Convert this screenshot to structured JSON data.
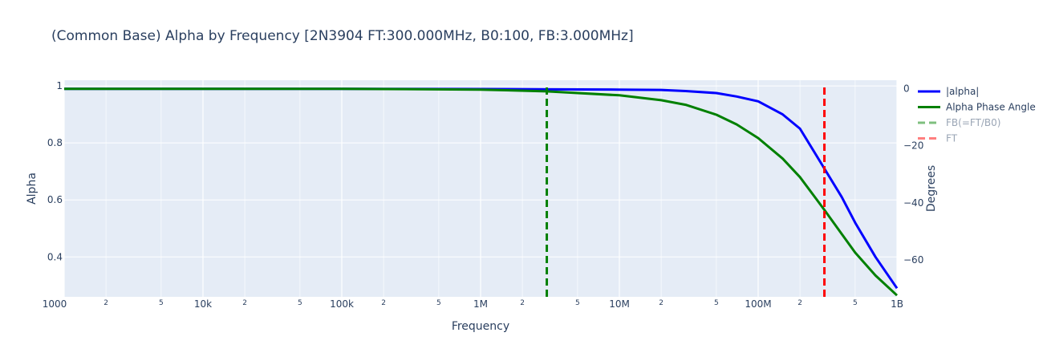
{
  "chart_data": {
    "type": "line",
    "title": "(Common Base) Alpha by Frequency [2N3904 FT:300.000MHz, B0:100, FB:3.000MHz]",
    "xlabel": "Frequency",
    "ylabel": "Alpha",
    "y2label": "Degrees",
    "x_scale": "log",
    "xlim": [
      1000,
      1000000000
    ],
    "ylim": [
      0.26,
      1.02
    ],
    "y2lim": [
      -73.0,
      3.0
    ],
    "x_ticks": [
      {
        "value": 1000,
        "label": "1000",
        "major": true
      },
      {
        "value": 2000,
        "label": "2",
        "major": false
      },
      {
        "value": 5000,
        "label": "5",
        "major": false
      },
      {
        "value": 10000,
        "label": "10k",
        "major": true
      },
      {
        "value": 20000,
        "label": "2",
        "major": false
      },
      {
        "value": 50000,
        "label": "5",
        "major": false
      },
      {
        "value": 100000,
        "label": "100k",
        "major": true
      },
      {
        "value": 200000,
        "label": "2",
        "major": false
      },
      {
        "value": 500000,
        "label": "5",
        "major": false
      },
      {
        "value": 1000000,
        "label": "1M",
        "major": true
      },
      {
        "value": 2000000,
        "label": "2",
        "major": false
      },
      {
        "value": 5000000,
        "label": "5",
        "major": false
      },
      {
        "value": 10000000,
        "label": "10M",
        "major": true
      },
      {
        "value": 20000000,
        "label": "2",
        "major": false
      },
      {
        "value": 50000000,
        "label": "5",
        "major": false
      },
      {
        "value": 100000000,
        "label": "100M",
        "major": true
      },
      {
        "value": 200000000,
        "label": "2",
        "major": false
      },
      {
        "value": 500000000,
        "label": "5",
        "major": false
      },
      {
        "value": 1000000000,
        "label": "1B",
        "major": true
      }
    ],
    "y_ticks": [
      {
        "value": 0.4,
        "label": "0.4"
      },
      {
        "value": 0.6,
        "label": "0.6"
      },
      {
        "value": 0.8,
        "label": "0.8"
      },
      {
        "value": 1.0,
        "label": "1"
      }
    ],
    "y2_ticks": [
      {
        "value": -60,
        "label": "−60"
      },
      {
        "value": -40,
        "label": "−40"
      },
      {
        "value": -20,
        "label": "−20"
      },
      {
        "value": 0,
        "label": "0"
      }
    ],
    "series": [
      {
        "name": "|alpha|",
        "axis": "y",
        "color": "#0000ff",
        "dash": "solid",
        "x": [
          1000,
          10000,
          100000,
          1000000,
          3000000,
          10000000,
          20000000,
          30000000,
          50000000,
          70000000,
          100000000,
          150000000,
          200000000,
          300000000,
          400000000,
          500000000,
          700000000,
          1000000000
        ],
        "y": [
          0.99,
          0.99,
          0.99,
          0.989,
          0.988,
          0.987,
          0.986,
          0.982,
          0.975,
          0.963,
          0.946,
          0.9,
          0.85,
          0.71,
          0.61,
          0.52,
          0.4,
          0.29
        ]
      },
      {
        "name": "Alpha Phase Angle",
        "axis": "y2",
        "color": "#008000",
        "dash": "solid",
        "x": [
          1000,
          10000,
          100000,
          1000000,
          3000000,
          10000000,
          20000000,
          30000000,
          50000000,
          70000000,
          100000000,
          150000000,
          200000000,
          300000000,
          400000000,
          500000000,
          700000000,
          1000000000
        ],
        "y": [
          0,
          0,
          0,
          -0.3,
          -0.9,
          -2.3,
          -4.0,
          -5.6,
          -9.1,
          -12.5,
          -17.3,
          -24.5,
          -31.0,
          -42.5,
          -51.0,
          -57.5,
          -65.5,
          -72.5
        ]
      }
    ],
    "vlines": [
      {
        "name": "FB(=FT/B0)",
        "x": 3000000,
        "color": "#008000",
        "dash": "dash"
      },
      {
        "name": "FT",
        "x": 300000000,
        "color": "#ff0000",
        "dash": "dash"
      }
    ],
    "legend": {
      "placement": "right",
      "entries": [
        {
          "label": "|alpha|",
          "color": "#0000ff",
          "dash": "solid",
          "dim": false
        },
        {
          "label": "Alpha Phase Angle",
          "color": "#008000",
          "dash": "solid",
          "dim": false
        },
        {
          "label": "FB(=FT/B0)",
          "color": "#7fbf7f",
          "dash": "dash",
          "dim": true
        },
        {
          "label": "FT",
          "color": "#ff7f7f",
          "dash": "dash",
          "dim": true
        }
      ]
    },
    "grid": true,
    "plot_background": "#e5ecf6"
  }
}
